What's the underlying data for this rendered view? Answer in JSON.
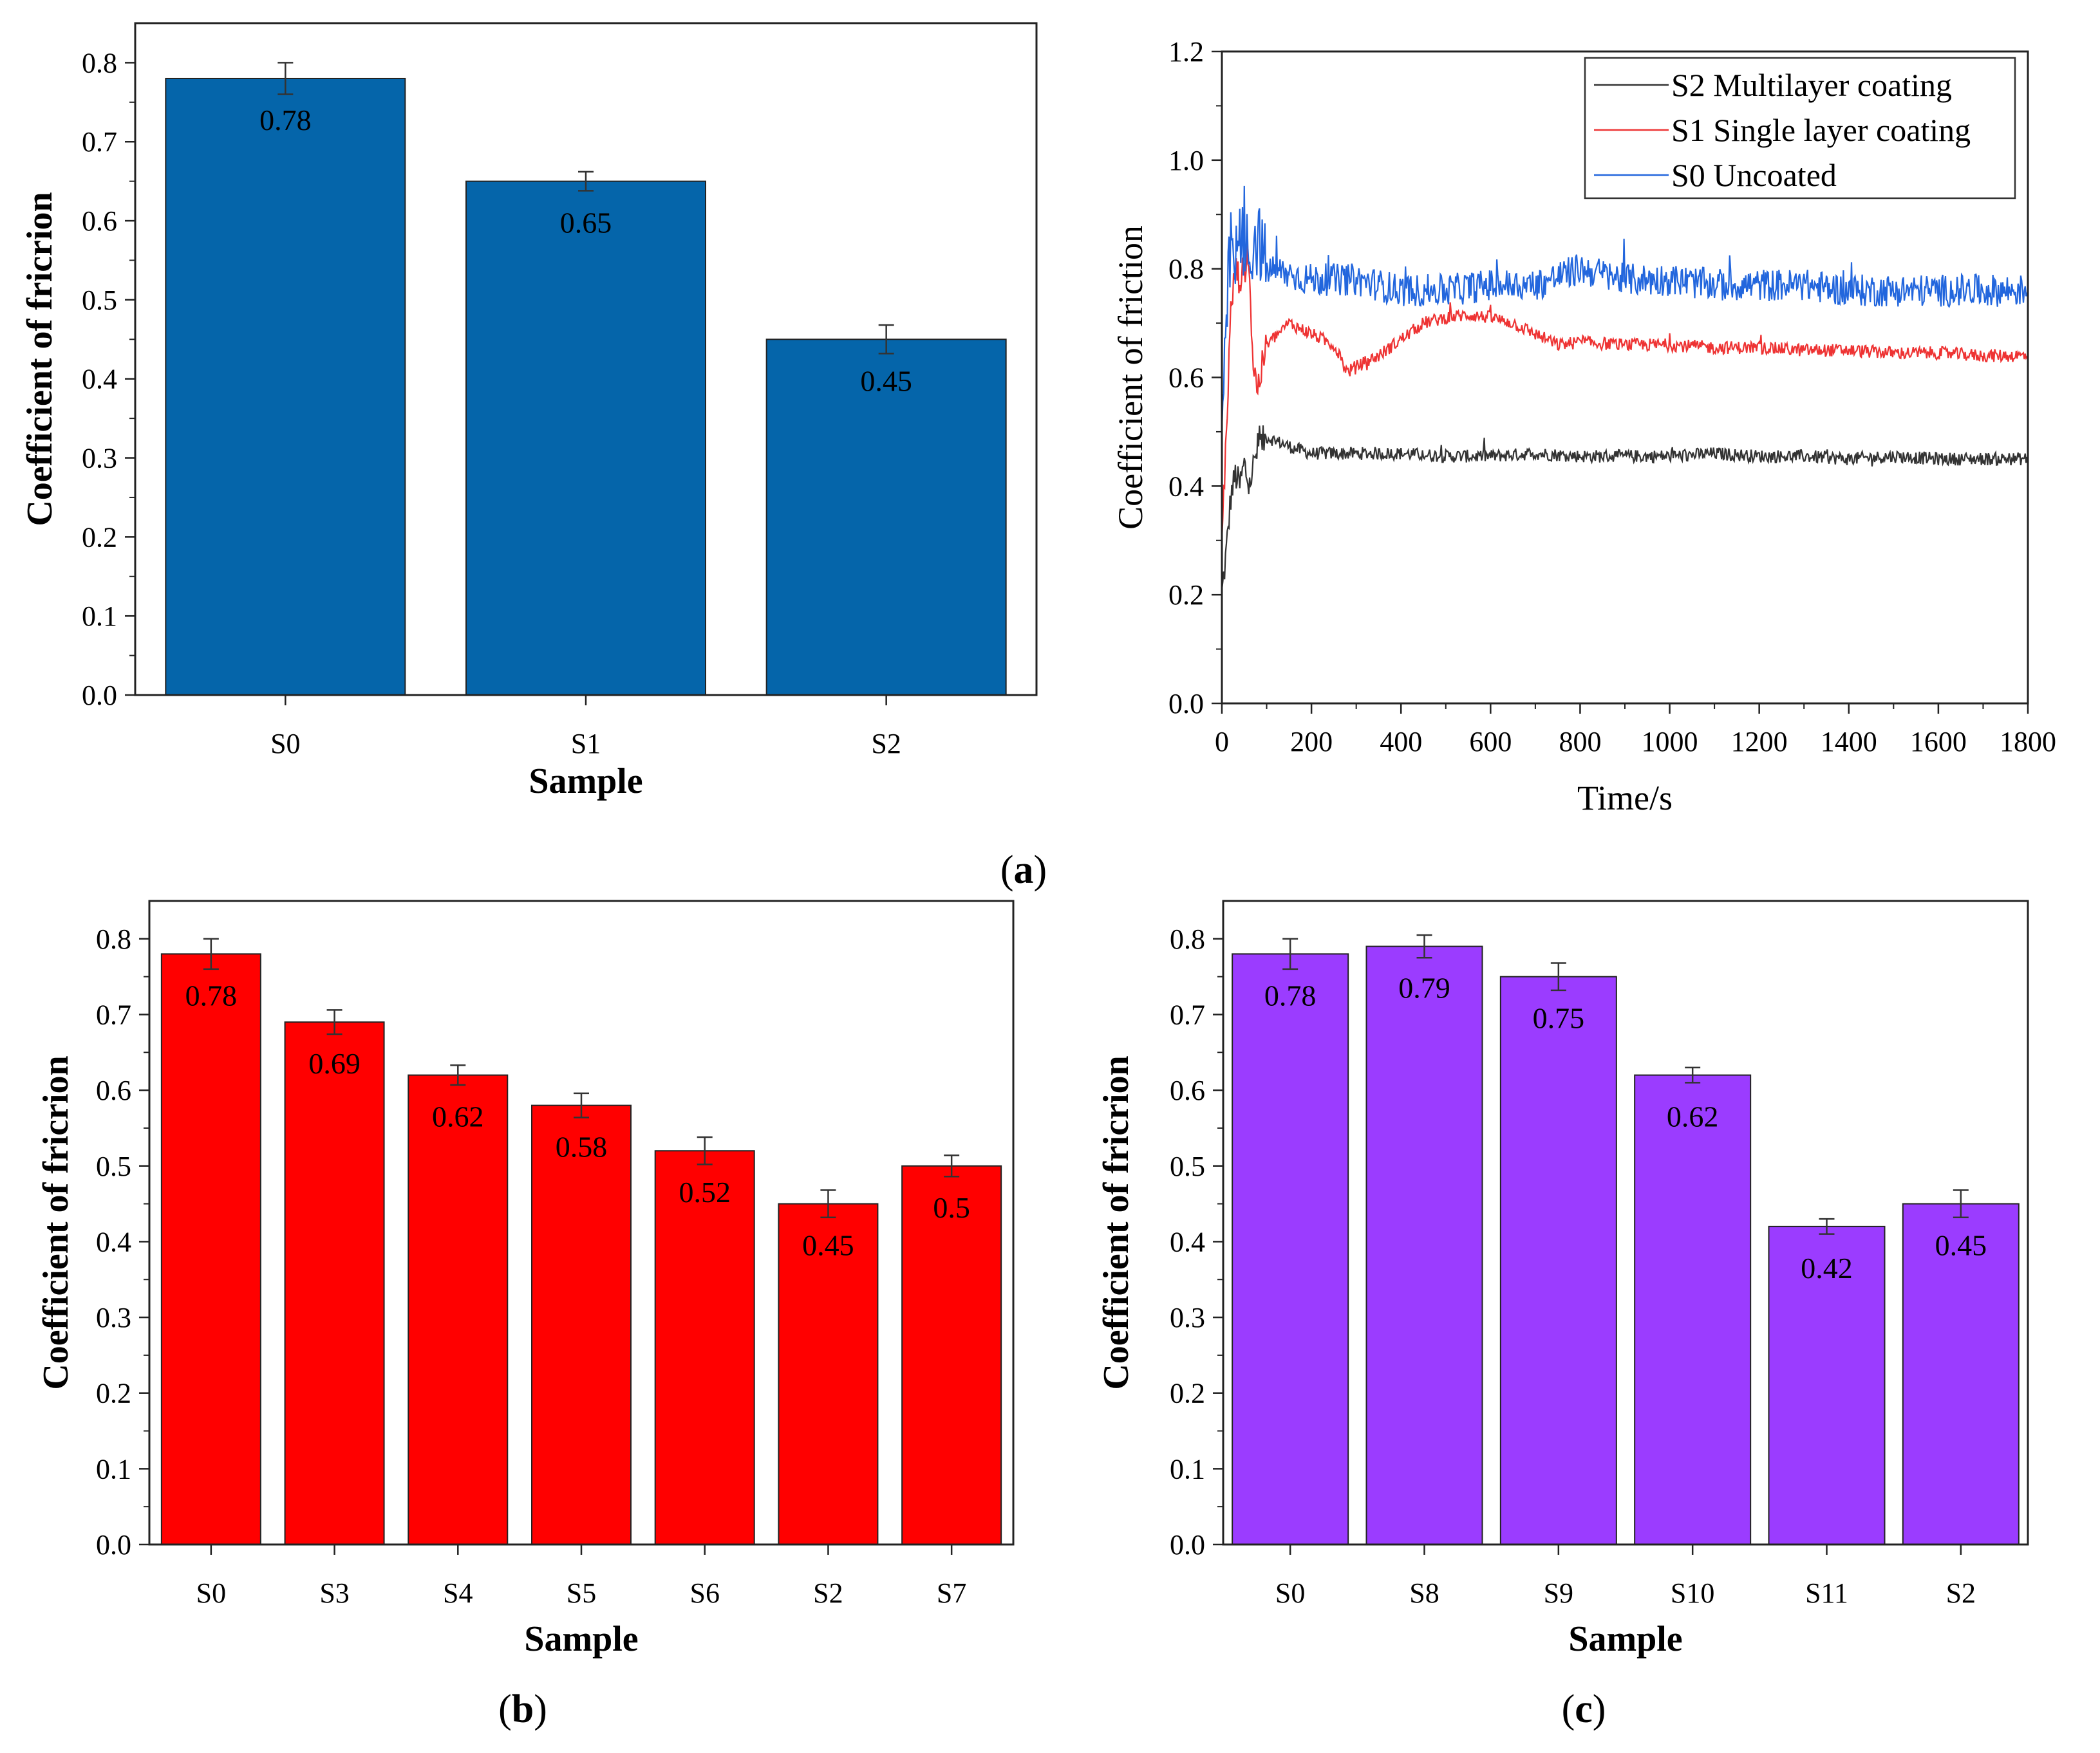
{
  "chart_data": [
    {
      "id": "a_bar",
      "type": "bar",
      "categories": [
        "S0",
        "S1",
        "S2"
      ],
      "values": [
        0.78,
        0.65,
        0.45
      ],
      "errors": [
        0.02,
        0.012,
        0.018
      ],
      "data_labels": [
        "0.78",
        "0.65",
        "0.45"
      ],
      "ylim": [
        0,
        0.85
      ],
      "yticks": [
        "0.0",
        "0.1",
        "0.2",
        "0.3",
        "0.4",
        "0.5",
        "0.6",
        "0.7",
        "0.8"
      ],
      "xlabel": "Sample",
      "ylabel": "Coefficient of fricrion",
      "color": "#0565aa"
    },
    {
      "id": "a_line",
      "type": "line",
      "xlim": [
        0,
        1800
      ],
      "ylim": [
        0,
        1.2
      ],
      "xticks": [
        "0",
        "200",
        "400",
        "600",
        "800",
        "1000",
        "1200",
        "1400",
        "1600",
        "1800"
      ],
      "yticks": [
        "0.0",
        "0.2",
        "0.4",
        "0.6",
        "0.8",
        "1.0",
        "1.2"
      ],
      "xlabel": "Time/s",
      "ylabel": "Coefficient of friction",
      "legend_position": "top-right",
      "series": [
        {
          "name": "S2 Multilayer coating",
          "color": "#333333",
          "x": [
            0,
            10,
            20,
            30,
            40,
            50,
            60,
            80,
            100,
            130,
            160,
            200,
            300,
            400,
            500,
            600,
            700,
            800,
            900,
            1000,
            1100,
            1200,
            1300,
            1400,
            1500,
            1600,
            1700,
            1800
          ],
          "values": [
            0.2,
            0.28,
            0.38,
            0.42,
            0.4,
            0.44,
            0.4,
            0.47,
            0.49,
            0.48,
            0.47,
            0.46,
            0.46,
            0.46,
            0.455,
            0.455,
            0.46,
            0.455,
            0.455,
            0.455,
            0.46,
            0.455,
            0.455,
            0.45,
            0.455,
            0.45,
            0.45,
            0.45
          ]
        },
        {
          "name": "S1 Single layer coating",
          "color": "#ee3333",
          "x": [
            0,
            10,
            20,
            30,
            40,
            50,
            60,
            70,
            80,
            100,
            150,
            200,
            250,
            280,
            300,
            350,
            400,
            450,
            500,
            550,
            600,
            650,
            700,
            750,
            800,
            900,
            1000,
            1100,
            1200,
            1300,
            1400,
            1500,
            1600,
            1700,
            1800
          ],
          "values": [
            0.3,
            0.5,
            0.72,
            0.8,
            0.78,
            0.8,
            0.82,
            0.62,
            0.58,
            0.66,
            0.7,
            0.68,
            0.66,
            0.61,
            0.62,
            0.64,
            0.67,
            0.7,
            0.71,
            0.715,
            0.71,
            0.7,
            0.68,
            0.66,
            0.665,
            0.66,
            0.66,
            0.655,
            0.655,
            0.65,
            0.65,
            0.645,
            0.645,
            0.64,
            0.64
          ]
        },
        {
          "name": "S0 Uncoated",
          "color": "#2266dd",
          "x": [
            0,
            10,
            20,
            30,
            40,
            60,
            80,
            100,
            200,
            300,
            400,
            500,
            600,
            700,
            800,
            900,
            1000,
            1100,
            1200,
            1300,
            1400,
            1500,
            1600,
            1700,
            1800
          ],
          "values": [
            0.45,
            0.7,
            0.85,
            0.8,
            0.86,
            0.83,
            0.86,
            0.8,
            0.78,
            0.78,
            0.76,
            0.76,
            0.77,
            0.77,
            0.8,
            0.78,
            0.78,
            0.77,
            0.77,
            0.77,
            0.76,
            0.76,
            0.76,
            0.76,
            0.76
          ]
        }
      ]
    },
    {
      "id": "b_bar",
      "type": "bar",
      "categories": [
        "S0",
        "S3",
        "S4",
        "S5",
        "S6",
        "S2",
        "S7"
      ],
      "values": [
        0.78,
        0.69,
        0.62,
        0.58,
        0.52,
        0.45,
        0.5
      ],
      "errors": [
        0.02,
        0.016,
        0.013,
        0.016,
        0.018,
        0.018,
        0.014
      ],
      "data_labels": [
        "0.78",
        "0.69",
        "0.62",
        "0.58",
        "0.52",
        "0.45",
        "0.5"
      ],
      "ylim": [
        0,
        0.85
      ],
      "yticks": [
        "0.0",
        "0.1",
        "0.2",
        "0.3",
        "0.4",
        "0.5",
        "0.6",
        "0.7",
        "0.8"
      ],
      "xlabel": "Sample",
      "ylabel": "Coefficient of fricrion",
      "color": "#ff0000"
    },
    {
      "id": "c_bar",
      "type": "bar",
      "categories": [
        "S0",
        "S8",
        "S9",
        "S10",
        "S11",
        "S2"
      ],
      "values": [
        0.78,
        0.79,
        0.75,
        0.62,
        0.42,
        0.45
      ],
      "errors": [
        0.02,
        0.015,
        0.018,
        0.01,
        0.01,
        0.018
      ],
      "data_labels": [
        "0.78",
        "0.79",
        "0.75",
        "0.62",
        "0.42",
        "0.45"
      ],
      "ylim": [
        0,
        0.85
      ],
      "yticks": [
        "0.0",
        "0.1",
        "0.2",
        "0.3",
        "0.4",
        "0.5",
        "0.6",
        "0.7",
        "0.8"
      ],
      "xlabel": "Sample",
      "ylabel": "Coefficient of fricrion",
      "color": "#9b3cff"
    }
  ],
  "panel_labels": {
    "a": {
      "open": "(",
      "letter": "a",
      "close": ")"
    },
    "b": {
      "open": "(",
      "letter": "b",
      "close": ")"
    },
    "c": {
      "open": "(",
      "letter": "c",
      "close": ")"
    }
  }
}
